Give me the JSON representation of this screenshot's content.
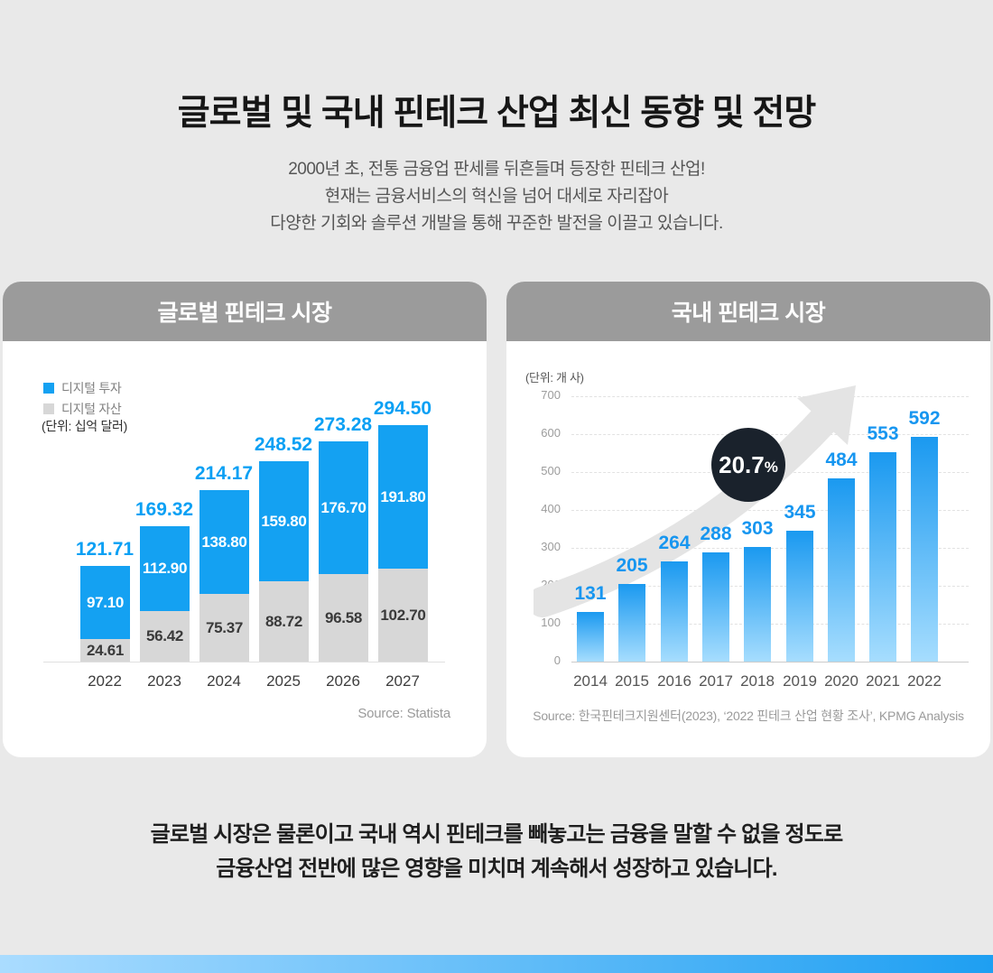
{
  "page": {
    "title": "글로벌 및 국내 핀테크 산업 최신 동향 및 전망",
    "subtitle_lines": [
      "2000년 초, 전통 금융업 판세를 뒤흔들며 등장한 핀테크 산업!",
      "현재는 금융서비스의 혁신을 넘어 대세로 자리잡아",
      "다양한 기회와 솔루션 개발을 통해 꾸준한 발전을 이끌고 있습니다."
    ],
    "closing_lines": [
      "글로벌 시장은 물론이고 국내 역시 핀테크를 빼놓고는 금융을 말할 수 없을 정도로",
      "금융산업 전반에 많은 영향을 미치며 계속해서 성장하고 있습니다."
    ]
  },
  "colors": {
    "background": "#e9e9e9",
    "card_header_gray": "#9b9b9b",
    "accent_blue": "#14a1f2",
    "bar_gray": "#d7d7d7",
    "badge_bg": "#1a222c",
    "bar_gradient_top": "#1a99f0",
    "bar_gradient_bottom": "#a6ddfe",
    "arrow_gray": "#e4e4e4",
    "footer_bar_left": "#aadcff",
    "footer_bar_right": "#1e9ff2"
  },
  "chart_data": [
    {
      "type": "bar",
      "stacked": true,
      "title": "글로벌 핀테크 시장",
      "unit_label": "(단위: 십억 달러)",
      "categories": [
        "2022",
        "2023",
        "2024",
        "2025",
        "2026",
        "2027"
      ],
      "series": [
        {
          "name": "디지털 투자",
          "color": "#14a1f2",
          "values": [
            97.1,
            112.9,
            138.8,
            159.8,
            176.7,
            191.8
          ],
          "labels": [
            "97.10",
            "112.90",
            "138.80",
            "159.80",
            "176.70",
            "191.80"
          ]
        },
        {
          "name": "디지털 자산",
          "color": "#d7d7d7",
          "values": [
            24.61,
            56.42,
            75.37,
            88.72,
            96.58,
            102.7
          ],
          "labels": [
            "24.61",
            "56.42",
            "75.37",
            "88.72",
            "96.58",
            "102.70"
          ]
        }
      ],
      "totals": [
        121.71,
        169.32,
        214.17,
        248.52,
        273.28,
        294.5
      ],
      "totals_labels": [
        "121.71",
        "169.32",
        "214.17",
        "248.52",
        "273.28",
        "294.50"
      ],
      "legend_position": "top-left",
      "grid": false,
      "source": "Source: Statista"
    },
    {
      "type": "bar",
      "title": "국내 핀테크 시장",
      "unit_label": "(단위: 개 사)",
      "categories": [
        "2014",
        "2015",
        "2016",
        "2017",
        "2018",
        "2019",
        "2020",
        "2021",
        "2022"
      ],
      "values": [
        131,
        205,
        264,
        288,
        303,
        345,
        484,
        553,
        592
      ],
      "ylim": [
        0,
        700
      ],
      "yticks": [
        0,
        100,
        200,
        300,
        400,
        500,
        600,
        700
      ],
      "grid": true,
      "annotation": {
        "value": "20.7",
        "unit": "%"
      },
      "source": "Source: 한국핀테크지원센터(2023), ‘2022 핀테크 산업 현황 조사’, KPMG Analysis"
    }
  ]
}
